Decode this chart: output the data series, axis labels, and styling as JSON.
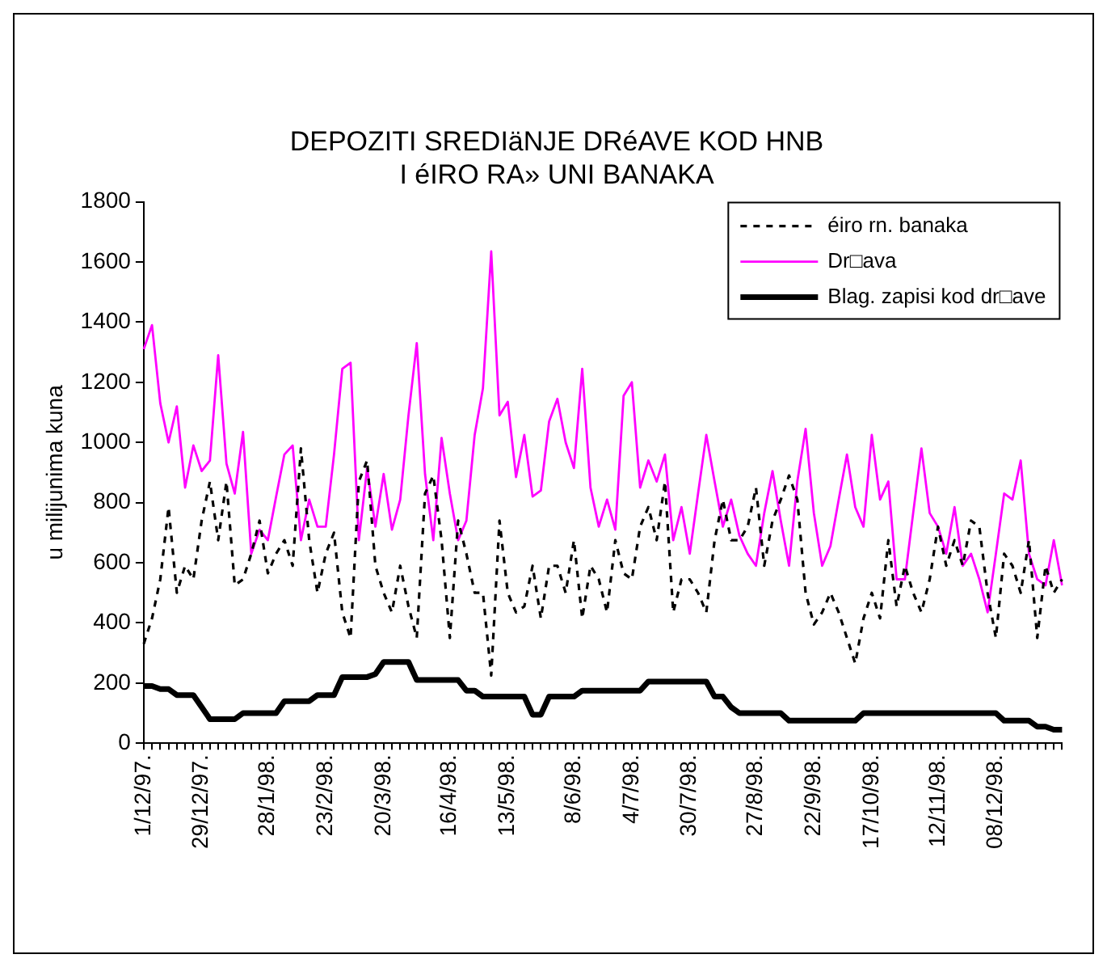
{
  "chart_data": {
    "type": "line",
    "title": "DEPOZITI SREDIäNJE DRéAVE KOD HNB\nI éIRO RA» UNI BANAKA",
    "ylabel": "u milijunima kuna",
    "categories": [
      "1/12/97.",
      null,
      null,
      null,
      null,
      null,
      null,
      "29/12/97.",
      null,
      null,
      null,
      null,
      null,
      null,
      null,
      "28/1/98.",
      null,
      null,
      null,
      null,
      null,
      null,
      "23/2/98.",
      null,
      null,
      null,
      null,
      null,
      null,
      "20/3/98.",
      null,
      null,
      null,
      null,
      null,
      null,
      null,
      "16/4/98.",
      null,
      null,
      null,
      null,
      null,
      null,
      "13/5/98.",
      null,
      null,
      null,
      null,
      null,
      null,
      null,
      "8/6/98.",
      null,
      null,
      null,
      null,
      null,
      null,
      "4/7/98.",
      null,
      null,
      null,
      null,
      null,
      null,
      "30/7/98.",
      null,
      null,
      null,
      null,
      null,
      null,
      null,
      "27/8/98.",
      null,
      null,
      null,
      null,
      null,
      null,
      "22/9/98.",
      null,
      null,
      null,
      null,
      null,
      null,
      "17/10/98.",
      null,
      null,
      null,
      null,
      null,
      null,
      null,
      "12/11/98.",
      null,
      null,
      null,
      null,
      null,
      null,
      "08/12/98.",
      null,
      null,
      null,
      null,
      null,
      null,
      null,
      null
    ],
    "series": [
      {
        "name": "éiro rn. banaka",
        "color": "#000000",
        "line_style": "dashed",
        "values": [
          330,
          415,
          545,
          785,
          500,
          590,
          545,
          740,
          870,
          675,
          870,
          525,
          545,
          630,
          740,
          565,
          630,
          675,
          590,
          980,
          675,
          500,
          630,
          700,
          435,
          350,
          870,
          940,
          590,
          500,
          435,
          590,
          455,
          350,
          830,
          890,
          675,
          350,
          740,
          630,
          500,
          500,
          225,
          740,
          500,
          435,
          455,
          590,
          415,
          590,
          590,
          500,
          675,
          415,
          590,
          545,
          435,
          675,
          565,
          545,
          720,
          785,
          675,
          870,
          435,
          545,
          545,
          500,
          435,
          675,
          810,
          675,
          675,
          720,
          850,
          590,
          740,
          810,
          890,
          810,
          500,
          395,
          435,
          500,
          435,
          350,
          265,
          415,
          500,
          415,
          675,
          455,
          590,
          500,
          435,
          545,
          720,
          590,
          675,
          590,
          740,
          720,
          500,
          350,
          630,
          590,
          500,
          675,
          350,
          590,
          500,
          545
        ]
      },
      {
        "name": "Dr□ava",
        "color": "#ff00ff",
        "line_style": "solid",
        "values": [
          1310,
          1390,
          1130,
          1000,
          1120,
          850,
          990,
          905,
          940,
          1290,
          930,
          830,
          1035,
          630,
          710,
          675,
          820,
          960,
          990,
          675,
          810,
          720,
          720,
          960,
          1245,
          1265,
          675,
          915,
          720,
          895,
          710,
          810,
          1090,
          1330,
          895,
          675,
          1015,
          830,
          675,
          740,
          1025,
          1180,
          1635,
          1090,
          1135,
          885,
          1025,
          820,
          840,
          1070,
          1145,
          1000,
          915,
          1245,
          850,
          720,
          810,
          710,
          1155,
          1200,
          850,
          940,
          870,
          960,
          675,
          785,
          630,
          830,
          1025,
          870,
          720,
          810,
          690,
          630,
          590,
          765,
          905,
          740,
          590,
          870,
          1045,
          765,
          590,
          655,
          810,
          960,
          785,
          720,
          1025,
          810,
          870,
          545,
          545,
          765,
          980,
          765,
          720,
          630,
          785,
          590,
          630,
          545,
          435,
          630,
          830,
          810,
          940,
          630,
          545,
          525,
          675,
          525
        ]
      },
      {
        "name": "Blag. zapisi kod dr□ave",
        "color": "#000000",
        "line_style": "solid",
        "values": [
          190,
          190,
          180,
          180,
          160,
          160,
          160,
          120,
          80,
          80,
          80,
          80,
          100,
          100,
          100,
          100,
          100,
          140,
          140,
          140,
          140,
          160,
          160,
          160,
          220,
          220,
          220,
          220,
          230,
          270,
          270,
          270,
          270,
          210,
          210,
          210,
          210,
          210,
          210,
          175,
          175,
          155,
          155,
          155,
          155,
          155,
          155,
          95,
          95,
          155,
          155,
          155,
          155,
          175,
          175,
          175,
          175,
          175,
          175,
          175,
          175,
          205,
          205,
          205,
          205,
          205,
          205,
          205,
          205,
          155,
          155,
          120,
          100,
          100,
          100,
          100,
          100,
          100,
          75,
          75,
          75,
          75,
          75,
          75,
          75,
          75,
          75,
          100,
          100,
          100,
          100,
          100,
          100,
          100,
          100,
          100,
          100,
          100,
          100,
          100,
          100,
          100,
          100,
          100,
          75,
          75,
          75,
          75,
          55,
          55,
          45,
          45
        ]
      }
    ],
    "ylim": [
      0,
      1800
    ],
    "yticks": [
      0,
      200,
      400,
      600,
      800,
      1000,
      1200,
      1400,
      1600,
      1800
    ],
    "grid": false,
    "legend": "top right",
    "marker": "none"
  }
}
